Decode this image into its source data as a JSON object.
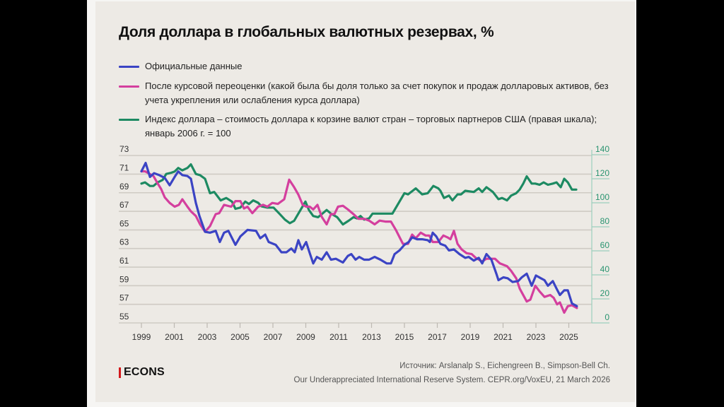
{
  "publisher": {
    "logo_text": "ECONS",
    "logo_accent_color": "#d3191c"
  },
  "source": {
    "line1": "Источник: Arslanalp S., Eichengreen B., Simpson-Bell Ch.",
    "line2": "Our Underappreciated International Reserve System. CEPR.org/VoxEU, 21 March 2026"
  },
  "chart_data": {
    "type": "line",
    "title": "Доля доллара в глобальных валютных резервах, %",
    "xlabel": "",
    "ylabel": "",
    "y2label": "",
    "legend_position": "top-left",
    "grid": true,
    "x_ticks": [
      1999,
      2001,
      2003,
      2005,
      2007,
      2009,
      2011,
      2013,
      2015,
      2017,
      2019,
      2021,
      2023,
      2025
    ],
    "xlim": [
      1998.5,
      2026
    ],
    "y_left": {
      "ticks": [
        55,
        57,
        59,
        61,
        63,
        65,
        67,
        69,
        71,
        73
      ],
      "ylim": [
        55,
        73
      ]
    },
    "y_right": {
      "ticks": [
        0,
        20,
        40,
        60,
        80,
        100,
        120,
        140
      ],
      "ylim": [
        0,
        140
      ],
      "color": "#2a9470"
    },
    "series": [
      {
        "name": "Официальные данные",
        "axis": "left",
        "color": "#3b44c4",
        "points": [
          [
            1999.0,
            71.3
          ],
          [
            1999.26,
            72.2
          ],
          [
            1999.52,
            70.7
          ],
          [
            1999.77,
            71.1
          ],
          [
            2000.08,
            70.9
          ],
          [
            2000.42,
            70.6
          ],
          [
            2000.72,
            69.8
          ],
          [
            2001.02,
            70.7
          ],
          [
            2001.24,
            71.3
          ],
          [
            2001.49,
            70.9
          ],
          [
            2001.8,
            70.8
          ],
          [
            2002.01,
            70.5
          ],
          [
            2002.31,
            67.9
          ],
          [
            2002.53,
            66.5
          ],
          [
            2002.87,
            64.8
          ],
          [
            2003.17,
            64.7
          ],
          [
            2003.52,
            64.9
          ],
          [
            2003.77,
            63.7
          ],
          [
            2004.03,
            64.7
          ],
          [
            2004.29,
            64.9
          ],
          [
            2004.72,
            63.4
          ],
          [
            2005.02,
            64.3
          ],
          [
            2005.45,
            65.0
          ],
          [
            2005.97,
            64.9
          ],
          [
            2006.23,
            64.1
          ],
          [
            2006.53,
            64.5
          ],
          [
            2006.74,
            63.7
          ],
          [
            2007.17,
            63.4
          ],
          [
            2007.52,
            62.6
          ],
          [
            2007.82,
            62.6
          ],
          [
            2008.12,
            63.0
          ],
          [
            2008.33,
            62.6
          ],
          [
            2008.55,
            63.9
          ],
          [
            2008.76,
            62.9
          ],
          [
            2009.02,
            63.7
          ],
          [
            2009.24,
            62.5
          ],
          [
            2009.45,
            61.4
          ],
          [
            2009.67,
            62.1
          ],
          [
            2009.97,
            61.8
          ],
          [
            2010.27,
            62.6
          ],
          [
            2010.53,
            61.8
          ],
          [
            2010.83,
            61.9
          ],
          [
            2011.26,
            61.5
          ],
          [
            2011.56,
            62.2
          ],
          [
            2011.77,
            62.4
          ],
          [
            2012.03,
            61.8
          ],
          [
            2012.25,
            62.1
          ],
          [
            2012.55,
            61.8
          ],
          [
            2012.85,
            61.8
          ],
          [
            2013.19,
            62.1
          ],
          [
            2013.54,
            61.8
          ],
          [
            2013.92,
            61.4
          ],
          [
            2014.18,
            61.4
          ],
          [
            2014.4,
            62.4
          ],
          [
            2014.7,
            62.8
          ],
          [
            2015.0,
            63.4
          ],
          [
            2015.26,
            63.7
          ],
          [
            2015.47,
            64.2
          ],
          [
            2015.77,
            64.0
          ],
          [
            2016.08,
            64.0
          ],
          [
            2016.42,
            63.9
          ],
          [
            2016.55,
            63.7
          ],
          [
            2016.72,
            64.7
          ],
          [
            2016.94,
            64.3
          ],
          [
            2017.19,
            63.5
          ],
          [
            2017.49,
            63.3
          ],
          [
            2017.71,
            62.8
          ],
          [
            2018.01,
            62.9
          ],
          [
            2018.35,
            62.4
          ],
          [
            2018.7,
            62.0
          ],
          [
            2018.91,
            62.1
          ],
          [
            2019.22,
            61.7
          ],
          [
            2019.52,
            62.0
          ],
          [
            2019.73,
            61.4
          ],
          [
            2019.99,
            62.4
          ],
          [
            2020.29,
            61.8
          ],
          [
            2020.59,
            60.3
          ],
          [
            2020.72,
            59.6
          ],
          [
            2021.02,
            59.9
          ],
          [
            2021.28,
            59.8
          ],
          [
            2021.58,
            59.4
          ],
          [
            2021.92,
            59.5
          ],
          [
            2022.14,
            59.9
          ],
          [
            2022.44,
            60.3
          ],
          [
            2022.74,
            59.0
          ],
          [
            2023.0,
            60.1
          ],
          [
            2023.3,
            59.8
          ],
          [
            2023.52,
            59.6
          ],
          [
            2023.73,
            59.0
          ],
          [
            2024.03,
            59.5
          ],
          [
            2024.25,
            58.7
          ],
          [
            2024.46,
            58.0
          ],
          [
            2024.72,
            58.5
          ],
          [
            2024.94,
            58.5
          ],
          [
            2025.19,
            57.1
          ],
          [
            2025.49,
            56.8
          ]
        ]
      },
      {
        "name": "После курсовой переоценки (какой была бы доля только за счет покупок и продаж долларовых активов, без учета укрепления или ослабления курса доллара)",
        "axis": "left",
        "color": "#d43f9e",
        "points": [
          [
            1999.0,
            71.3
          ],
          [
            1999.22,
            71.3
          ],
          [
            1999.43,
            71.1
          ],
          [
            1999.73,
            70.8
          ],
          [
            1999.99,
            70.0
          ],
          [
            2000.2,
            69.4
          ],
          [
            2000.42,
            68.5
          ],
          [
            2000.72,
            67.9
          ],
          [
            2001.02,
            67.5
          ],
          [
            2001.28,
            67.7
          ],
          [
            2001.49,
            68.3
          ],
          [
            2001.8,
            67.5
          ],
          [
            2002.01,
            67.0
          ],
          [
            2002.31,
            66.5
          ],
          [
            2002.57,
            65.6
          ],
          [
            2002.87,
            64.8
          ],
          [
            2003.17,
            65.4
          ],
          [
            2003.52,
            66.7
          ],
          [
            2003.73,
            66.8
          ],
          [
            2004.03,
            67.7
          ],
          [
            2004.46,
            67.5
          ],
          [
            2004.72,
            68.1
          ],
          [
            2005.02,
            68.1
          ],
          [
            2005.24,
            67.3
          ],
          [
            2005.45,
            67.5
          ],
          [
            2005.75,
            66.8
          ],
          [
            2006.1,
            67.5
          ],
          [
            2006.4,
            67.7
          ],
          [
            2006.66,
            67.5
          ],
          [
            2006.96,
            67.9
          ],
          [
            2007.3,
            67.8
          ],
          [
            2007.69,
            68.3
          ],
          [
            2007.99,
            70.4
          ],
          [
            2008.29,
            69.6
          ],
          [
            2008.55,
            68.8
          ],
          [
            2008.81,
            67.7
          ],
          [
            2009.02,
            67.5
          ],
          [
            2009.24,
            67.5
          ],
          [
            2009.45,
            67.2
          ],
          [
            2009.71,
            67.7
          ],
          [
            2009.97,
            66.4
          ],
          [
            2010.27,
            65.6
          ],
          [
            2010.53,
            66.7
          ],
          [
            2010.74,
            66.7
          ],
          [
            2010.96,
            67.5
          ],
          [
            2011.26,
            67.6
          ],
          [
            2011.56,
            67.2
          ],
          [
            2011.9,
            66.7
          ],
          [
            2012.2,
            66.2
          ],
          [
            2012.55,
            66.2
          ],
          [
            2012.85,
            66.0
          ],
          [
            2013.19,
            65.6
          ],
          [
            2013.49,
            66.0
          ],
          [
            2013.84,
            65.9
          ],
          [
            2014.18,
            65.9
          ],
          [
            2014.48,
            65.0
          ],
          [
            2014.91,
            63.5
          ],
          [
            2015.22,
            63.5
          ],
          [
            2015.47,
            64.5
          ],
          [
            2015.69,
            64.1
          ],
          [
            2015.99,
            64.7
          ],
          [
            2016.29,
            64.4
          ],
          [
            2016.51,
            64.4
          ],
          [
            2016.72,
            63.7
          ],
          [
            2017.06,
            63.7
          ],
          [
            2017.37,
            64.4
          ],
          [
            2017.62,
            64.2
          ],
          [
            2017.8,
            64.0
          ],
          [
            2018.01,
            64.9
          ],
          [
            2018.23,
            63.5
          ],
          [
            2018.48,
            62.9
          ],
          [
            2018.78,
            62.5
          ],
          [
            2019.09,
            62.4
          ],
          [
            2019.34,
            62.0
          ],
          [
            2019.73,
            61.6
          ],
          [
            2019.99,
            61.9
          ],
          [
            2020.2,
            61.9
          ],
          [
            2020.51,
            61.9
          ],
          [
            2020.81,
            61.4
          ],
          [
            2021.24,
            61.1
          ],
          [
            2021.49,
            60.6
          ],
          [
            2021.8,
            59.8
          ],
          [
            2022.01,
            58.7
          ],
          [
            2022.44,
            57.3
          ],
          [
            2022.66,
            57.5
          ],
          [
            2022.96,
            59.0
          ],
          [
            2023.22,
            58.4
          ],
          [
            2023.52,
            57.8
          ],
          [
            2023.87,
            58.0
          ],
          [
            2024.08,
            57.7
          ],
          [
            2024.29,
            57.0
          ],
          [
            2024.46,
            57.2
          ],
          [
            2024.72,
            56.1
          ],
          [
            2024.94,
            56.8
          ],
          [
            2025.19,
            56.9
          ],
          [
            2025.49,
            56.6
          ]
        ]
      },
      {
        "name": "Индекс доллара – стоимость доллара к корзине валют стран – торговых партнеров США (правая шкала); январь 2006 г. = 100",
        "axis": "right",
        "color": "#1d8a62",
        "points": [
          [
            1999.0,
            116
          ],
          [
            1999.22,
            117
          ],
          [
            1999.52,
            114
          ],
          [
            1999.73,
            114
          ],
          [
            1999.99,
            117
          ],
          [
            2000.29,
            119
          ],
          [
            2000.51,
            124
          ],
          [
            2000.81,
            125
          ],
          [
            2001.02,
            126
          ],
          [
            2001.24,
            129
          ],
          [
            2001.49,
            127
          ],
          [
            2001.8,
            129
          ],
          [
            2002.01,
            132
          ],
          [
            2002.31,
            124
          ],
          [
            2002.57,
            123
          ],
          [
            2002.87,
            120
          ],
          [
            2003.17,
            108
          ],
          [
            2003.43,
            109
          ],
          [
            2003.82,
            102
          ],
          [
            2004.16,
            104
          ],
          [
            2004.51,
            101
          ],
          [
            2004.72,
            95
          ],
          [
            2005.02,
            96
          ],
          [
            2005.32,
            101
          ],
          [
            2005.54,
            99
          ],
          [
            2005.8,
            102
          ],
          [
            2006.1,
            100
          ],
          [
            2006.31,
            97
          ],
          [
            2006.66,
            96
          ],
          [
            2007.04,
            96
          ],
          [
            2007.39,
            91
          ],
          [
            2007.73,
            86
          ],
          [
            2008.03,
            83
          ],
          [
            2008.29,
            85
          ],
          [
            2008.59,
            92
          ],
          [
            2008.98,
            101
          ],
          [
            2009.19,
            94
          ],
          [
            2009.45,
            89
          ],
          [
            2009.75,
            88
          ],
          [
            2010.01,
            91
          ],
          [
            2010.27,
            94
          ],
          [
            2010.53,
            91
          ],
          [
            2010.91,
            88
          ],
          [
            2011.26,
            82
          ],
          [
            2011.6,
            85
          ],
          [
            2011.9,
            88
          ],
          [
            2012.12,
            87
          ],
          [
            2012.33,
            89
          ],
          [
            2012.55,
            86
          ],
          [
            2012.85,
            87
          ],
          [
            2013.06,
            91
          ],
          [
            2013.49,
            91
          ],
          [
            2013.92,
            91
          ],
          [
            2014.27,
            91
          ],
          [
            2014.57,
            98
          ],
          [
            2015.0,
            108
          ],
          [
            2015.22,
            107
          ],
          [
            2015.69,
            112
          ],
          [
            2016.08,
            107
          ],
          [
            2016.42,
            108
          ],
          [
            2016.76,
            114
          ],
          [
            2017.06,
            112
          ],
          [
            2017.19,
            110
          ],
          [
            2017.41,
            104
          ],
          [
            2017.71,
            106
          ],
          [
            2017.92,
            102
          ],
          [
            2018.23,
            107
          ],
          [
            2018.44,
            107
          ],
          [
            2018.7,
            110
          ],
          [
            2019.22,
            109
          ],
          [
            2019.52,
            112
          ],
          [
            2019.73,
            109
          ],
          [
            2019.99,
            113
          ],
          [
            2020.38,
            109
          ],
          [
            2020.72,
            103
          ],
          [
            2020.94,
            104
          ],
          [
            2021.24,
            102
          ],
          [
            2021.49,
            106
          ],
          [
            2021.8,
            108
          ],
          [
            2022.01,
            111
          ],
          [
            2022.23,
            116
          ],
          [
            2022.44,
            122
          ],
          [
            2022.74,
            116
          ],
          [
            2022.96,
            116
          ],
          [
            2023.22,
            115
          ],
          [
            2023.47,
            117
          ],
          [
            2023.73,
            115
          ],
          [
            2024.03,
            116
          ],
          [
            2024.25,
            117
          ],
          [
            2024.51,
            113
          ],
          [
            2024.72,
            120
          ],
          [
            2024.94,
            117
          ],
          [
            2025.19,
            111
          ],
          [
            2025.45,
            111
          ]
        ]
      }
    ]
  }
}
